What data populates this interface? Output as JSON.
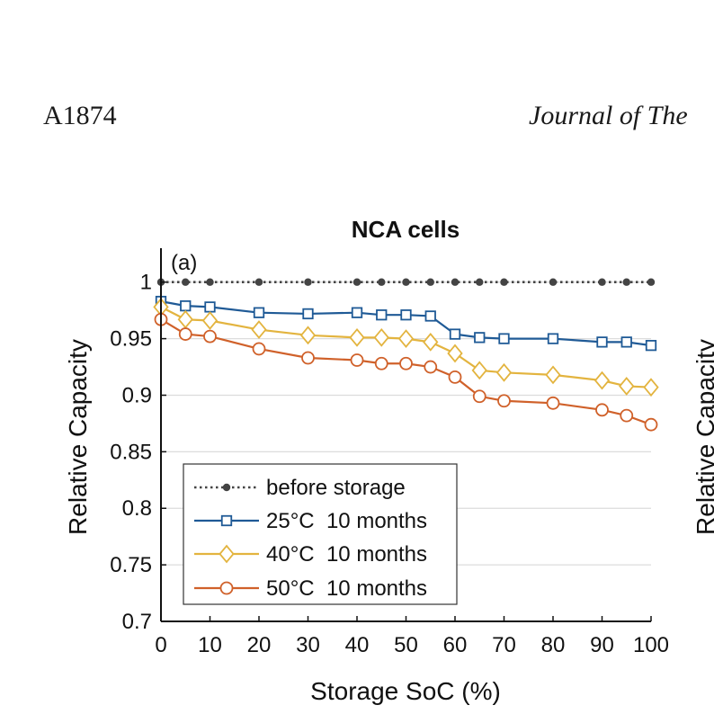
{
  "header": {
    "page_number": "A1874",
    "journal_fragment": "Journal of The"
  },
  "chart_data": {
    "type": "line",
    "title": "NCA cells",
    "panel_label": "(a)",
    "xlabel": "Storage SoC (%)",
    "ylabel": "Relative Capacity",
    "xlim": [
      0,
      100
    ],
    "ylim": [
      0.7,
      1.03
    ],
    "x_ticks": [
      0,
      10,
      20,
      30,
      40,
      50,
      60,
      70,
      80,
      90,
      100
    ],
    "x_tick_labels": [
      "0",
      "10",
      "20",
      "30",
      "40",
      "50",
      "60",
      "70",
      "80",
      "90",
      "100"
    ],
    "y_ticks": [
      0.7,
      0.75,
      0.8,
      0.85,
      0.9,
      0.95,
      1.0
    ],
    "y_tick_labels": [
      "0.7",
      "0.75",
      "0.8",
      "0.85",
      "0.9",
      "0.95",
      "1"
    ],
    "grid": "horizontal",
    "legend_position": "bottom-left",
    "series": [
      {
        "name": "before storage",
        "color": "#444444",
        "marker": "dot",
        "dash": "dotted",
        "x": [
          0,
          5,
          10,
          20,
          30,
          40,
          45,
          50,
          55,
          60,
          65,
          70,
          80,
          90,
          95,
          100
        ],
        "values": [
          1,
          1,
          1,
          1,
          1,
          1,
          1,
          1,
          1,
          1,
          1,
          1,
          1,
          1,
          1,
          1
        ]
      },
      {
        "name": "25°C  10 months",
        "color": "#1f5a96",
        "marker": "square",
        "dash": "solid",
        "x": [
          0,
          5,
          10,
          20,
          30,
          40,
          45,
          50,
          55,
          60,
          65,
          70,
          80,
          90,
          95,
          100
        ],
        "values": [
          0.983,
          0.979,
          0.978,
          0.973,
          0.972,
          0.973,
          0.971,
          0.971,
          0.97,
          0.954,
          0.951,
          0.95,
          0.95,
          0.947,
          0.947,
          0.944
        ]
      },
      {
        "name": "40°C  10 months",
        "color": "#e3b43f",
        "marker": "diamond",
        "dash": "solid",
        "x": [
          0,
          5,
          10,
          20,
          30,
          40,
          45,
          50,
          55,
          60,
          65,
          70,
          80,
          90,
          95,
          100
        ],
        "values": [
          0.978,
          0.967,
          0.966,
          0.958,
          0.953,
          0.951,
          0.951,
          0.95,
          0.947,
          0.937,
          0.922,
          0.92,
          0.918,
          0.913,
          0.908,
          0.907
        ]
      },
      {
        "name": "50°C  10 months",
        "color": "#d0612a",
        "marker": "circle",
        "dash": "solid",
        "x": [
          0,
          5,
          10,
          20,
          30,
          40,
          45,
          50,
          55,
          60,
          65,
          70,
          80,
          90,
          95,
          100
        ],
        "values": [
          0.967,
          0.954,
          0.952,
          0.941,
          0.933,
          0.931,
          0.928,
          0.928,
          0.925,
          0.916,
          0.899,
          0.895,
          0.893,
          0.887,
          0.882,
          0.874
        ]
      }
    ]
  },
  "clipped_panel": {
    "ylabel_fragment": "Relative Capacity"
  }
}
